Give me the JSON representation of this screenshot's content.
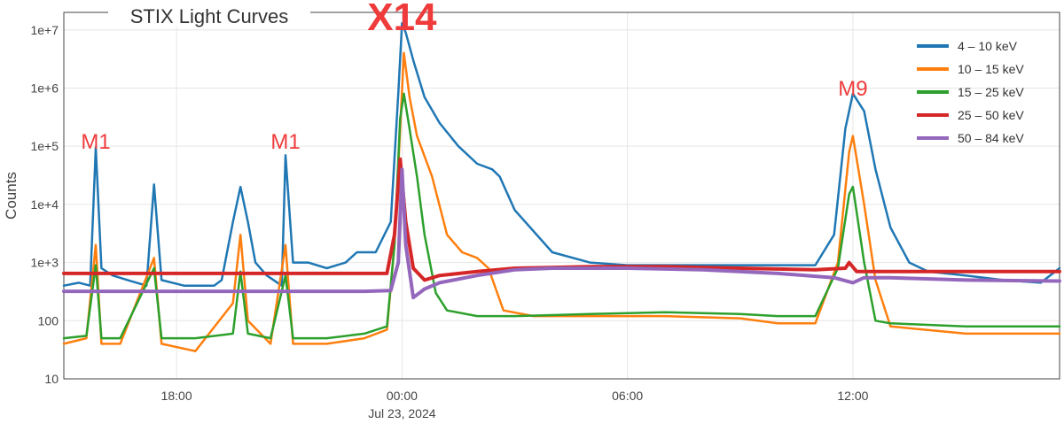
{
  "chart_data": {
    "type": "line",
    "title": "STIX Light Curves",
    "xlabel": "",
    "ylabel": "Counts",
    "y_scale": "log",
    "ylim": [
      10,
      20000000
    ],
    "xlim_hours": [
      -9.0,
      17.5
    ],
    "x_ticks": [
      {
        "label": "18:00",
        "hour": -6
      },
      {
        "label": "00:00",
        "hour": 0,
        "sublabel": "Jul 23, 2024"
      },
      {
        "label": "06:00",
        "hour": 6
      },
      {
        "label": "12:00",
        "hour": 12
      }
    ],
    "y_ticks": [
      {
        "label": "10",
        "value": 10
      },
      {
        "label": "100",
        "value": 100
      },
      {
        "label": "1e+3",
        "value": 1000
      },
      {
        "label": "1e+4",
        "value": 10000
      },
      {
        "label": "1e+5",
        "value": 100000
      },
      {
        "label": "1e+6",
        "value": 1000000
      },
      {
        "label": "1e+7",
        "value": 10000000
      }
    ],
    "grid": true,
    "legend_position": "top-right",
    "series": [
      {
        "name": "4 – 10 keV",
        "color": "#1f77b4",
        "points": [
          [
            -9.0,
            400
          ],
          [
            -8.6,
            450
          ],
          [
            -8.3,
            400
          ],
          [
            -8.15,
            95000
          ],
          [
            -8.0,
            800
          ],
          [
            -7.7,
            600
          ],
          [
            -7.3,
            500
          ],
          [
            -6.8,
            400
          ],
          [
            -6.6,
            22000
          ],
          [
            -6.4,
            500
          ],
          [
            -5.8,
            400
          ],
          [
            -5.0,
            400
          ],
          [
            -4.8,
            500
          ],
          [
            -4.5,
            5000
          ],
          [
            -4.3,
            20000
          ],
          [
            -4.1,
            5000
          ],
          [
            -3.9,
            1000
          ],
          [
            -3.6,
            600
          ],
          [
            -3.2,
            400
          ],
          [
            -3.1,
            70000
          ],
          [
            -2.9,
            1000
          ],
          [
            -2.5,
            1000
          ],
          [
            -2.0,
            800
          ],
          [
            -1.5,
            1000
          ],
          [
            -1.2,
            1500
          ],
          [
            -0.7,
            1500
          ],
          [
            -0.3,
            5000
          ],
          [
            -0.1,
            800000
          ],
          [
            0.0,
            13000000
          ],
          [
            0.1,
            9000000
          ],
          [
            0.3,
            3000000
          ],
          [
            0.6,
            700000
          ],
          [
            1.0,
            250000
          ],
          [
            1.5,
            100000
          ],
          [
            2.0,
            50000
          ],
          [
            2.4,
            40000
          ],
          [
            2.6,
            30000
          ],
          [
            3.0,
            8000
          ],
          [
            4.0,
            1500
          ],
          [
            5.0,
            1000
          ],
          [
            6.0,
            900
          ],
          [
            7.0,
            900
          ],
          [
            8.0,
            900
          ],
          [
            9.0,
            900
          ],
          [
            10.0,
            900
          ],
          [
            11.0,
            900
          ],
          [
            11.5,
            3000
          ],
          [
            11.8,
            200000
          ],
          [
            12.0,
            800000
          ],
          [
            12.3,
            400000
          ],
          [
            12.6,
            40000
          ],
          [
            13.0,
            4000
          ],
          [
            13.5,
            1000
          ],
          [
            14.0,
            700
          ],
          [
            15.0,
            600
          ],
          [
            16.0,
            500
          ],
          [
            17.0,
            450
          ],
          [
            17.5,
            800
          ]
        ]
      },
      {
        "name": "10 – 15 keV",
        "color": "#ff7f0e",
        "points": [
          [
            -9.0,
            40
          ],
          [
            -8.4,
            50
          ],
          [
            -8.15,
            2000
          ],
          [
            -8.0,
            40
          ],
          [
            -7.5,
            40
          ],
          [
            -6.6,
            1200
          ],
          [
            -6.4,
            40
          ],
          [
            -5.5,
            30
          ],
          [
            -4.5,
            200
          ],
          [
            -4.3,
            3000
          ],
          [
            -4.1,
            100
          ],
          [
            -3.5,
            40
          ],
          [
            -3.1,
            2000
          ],
          [
            -2.9,
            40
          ],
          [
            -2.0,
            40
          ],
          [
            -1.0,
            50
          ],
          [
            -0.4,
            70
          ],
          [
            -0.2,
            2000
          ],
          [
            -0.05,
            200000
          ],
          [
            0.05,
            4000000
          ],
          [
            0.2,
            700000
          ],
          [
            0.4,
            150000
          ],
          [
            0.8,
            30000
          ],
          [
            1.2,
            3000
          ],
          [
            1.6,
            1500
          ],
          [
            2.0,
            1200
          ],
          [
            2.3,
            800
          ],
          [
            2.7,
            150
          ],
          [
            3.5,
            120
          ],
          [
            5.0,
            120
          ],
          [
            7.0,
            120
          ],
          [
            9.0,
            110
          ],
          [
            10.0,
            90
          ],
          [
            11.0,
            90
          ],
          [
            11.6,
            1000
          ],
          [
            11.9,
            80000
          ],
          [
            12.0,
            150000
          ],
          [
            12.3,
            10000
          ],
          [
            12.6,
            500
          ],
          [
            13.0,
            80
          ],
          [
            15.0,
            60
          ],
          [
            17.5,
            60
          ]
        ]
      },
      {
        "name": "15 – 25 keV",
        "color": "#2ca02c",
        "points": [
          [
            -9.0,
            50
          ],
          [
            -8.4,
            55
          ],
          [
            -8.15,
            900
          ],
          [
            -8.0,
            50
          ],
          [
            -7.5,
            50
          ],
          [
            -6.6,
            800
          ],
          [
            -6.4,
            50
          ],
          [
            -5.5,
            50
          ],
          [
            -4.5,
            60
          ],
          [
            -4.3,
            700
          ],
          [
            -4.1,
            60
          ],
          [
            -3.5,
            50
          ],
          [
            -3.1,
            600
          ],
          [
            -2.9,
            50
          ],
          [
            -2.0,
            50
          ],
          [
            -1.0,
            60
          ],
          [
            -0.4,
            80
          ],
          [
            -0.2,
            2000
          ],
          [
            -0.05,
            300000
          ],
          [
            0.05,
            800000
          ],
          [
            0.2,
            200000
          ],
          [
            0.4,
            30000
          ],
          [
            0.6,
            3000
          ],
          [
            0.9,
            300
          ],
          [
            1.2,
            150
          ],
          [
            2.0,
            120
          ],
          [
            3.0,
            120
          ],
          [
            5.0,
            130
          ],
          [
            7.0,
            140
          ],
          [
            9.0,
            130
          ],
          [
            10.0,
            120
          ],
          [
            11.0,
            120
          ],
          [
            11.6,
            800
          ],
          [
            11.9,
            15000
          ],
          [
            12.0,
            20000
          ],
          [
            12.3,
            1000
          ],
          [
            12.6,
            100
          ],
          [
            13.0,
            90
          ],
          [
            15.0,
            80
          ],
          [
            17.5,
            80
          ]
        ]
      },
      {
        "name": "25 – 50 keV",
        "color": "#d62728",
        "points": [
          [
            -9.0,
            650
          ],
          [
            -6.0,
            650
          ],
          [
            -3.0,
            650
          ],
          [
            -1.0,
            650
          ],
          [
            -0.4,
            650
          ],
          [
            -0.2,
            3000
          ],
          [
            -0.05,
            60000
          ],
          [
            0.1,
            5000
          ],
          [
            0.3,
            800
          ],
          [
            0.6,
            500
          ],
          [
            1.0,
            600
          ],
          [
            2.0,
            700
          ],
          [
            3.0,
            800
          ],
          [
            5.0,
            850
          ],
          [
            7.0,
            850
          ],
          [
            9.0,
            800
          ],
          [
            11.0,
            750
          ],
          [
            11.8,
            800
          ],
          [
            11.9,
            1000
          ],
          [
            12.1,
            700
          ],
          [
            13.0,
            700
          ],
          [
            15.0,
            700
          ],
          [
            17.5,
            700
          ]
        ]
      },
      {
        "name": "50 – 84 keV",
        "color": "#9467bd",
        "points": [
          [
            -9.0,
            320
          ],
          [
            -6.0,
            320
          ],
          [
            -3.0,
            320
          ],
          [
            -1.0,
            320
          ],
          [
            -0.3,
            330
          ],
          [
            -0.1,
            1000
          ],
          [
            0.0,
            40000
          ],
          [
            0.1,
            2000
          ],
          [
            0.3,
            250
          ],
          [
            0.6,
            350
          ],
          [
            1.0,
            450
          ],
          [
            2.0,
            600
          ],
          [
            3.0,
            750
          ],
          [
            4.0,
            800
          ],
          [
            6.0,
            800
          ],
          [
            8.0,
            750
          ],
          [
            10.0,
            650
          ],
          [
            11.5,
            550
          ],
          [
            12.0,
            450
          ],
          [
            12.3,
            550
          ],
          [
            13.0,
            550
          ],
          [
            15.0,
            500
          ],
          [
            17.5,
            480
          ]
        ]
      }
    ],
    "annotations": [
      {
        "text": "M1",
        "hour": -8.15
      },
      {
        "text": "M1",
        "hour": -3.1
      },
      {
        "text": "X14",
        "hour": 0.0
      },
      {
        "text": "M9",
        "hour": 12.0
      }
    ]
  }
}
